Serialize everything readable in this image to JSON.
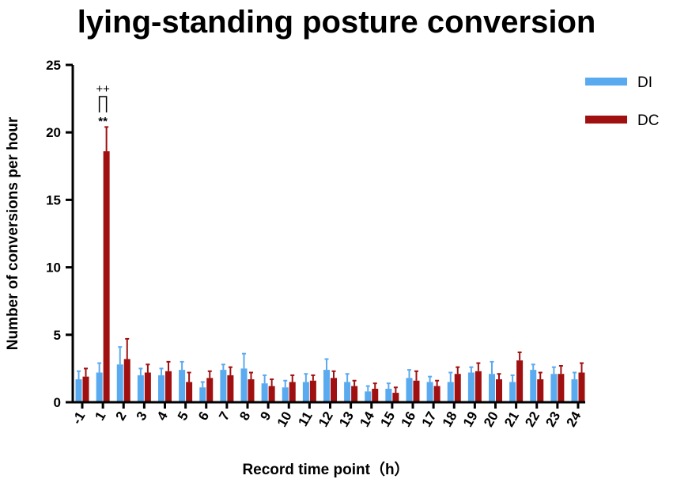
{
  "chart_data": {
    "type": "bar",
    "title": "lying-standing posture conversion",
    "xlabel": "Record time point（h）",
    "ylabel": "Number of conversions per hour",
    "ylim": [
      0,
      25
    ],
    "yticks": [
      "0",
      "5",
      "10",
      "15",
      "20",
      "25"
    ],
    "categories": [
      "-1",
      "1",
      "2",
      "3",
      "4",
      "5",
      "6",
      "7",
      "8",
      "9",
      "10",
      "11",
      "12",
      "13",
      "14",
      "15",
      "16",
      "17",
      "18",
      "19",
      "20",
      "21",
      "22",
      "23",
      "24"
    ],
    "series": [
      {
        "name": "DI",
        "color": "#5aaaf0",
        "values": [
          1.7,
          2.2,
          2.8,
          2.0,
          2.0,
          2.4,
          1.1,
          2.4,
          2.5,
          1.4,
          1.1,
          1.5,
          2.4,
          1.5,
          0.8,
          1.0,
          1.8,
          1.5,
          1.5,
          2.2,
          2.1,
          1.5,
          2.4,
          2.1,
          1.7
        ],
        "errors": [
          0.6,
          0.7,
          1.3,
          0.5,
          0.5,
          0.6,
          0.4,
          0.4,
          1.1,
          0.6,
          0.5,
          0.6,
          0.8,
          0.6,
          0.4,
          0.4,
          0.6,
          0.4,
          0.7,
          0.4,
          0.9,
          0.5,
          0.4,
          0.5,
          0.5
        ]
      },
      {
        "name": "DC",
        "color": "#a01010",
        "values": [
          1.9,
          18.6,
          3.2,
          2.2,
          2.3,
          1.5,
          1.8,
          2.0,
          1.7,
          1.2,
          1.5,
          1.6,
          1.8,
          1.2,
          1.0,
          0.7,
          1.6,
          1.2,
          2.1,
          2.3,
          1.7,
          3.1,
          1.7,
          2.1,
          2.2
        ],
        "errors": [
          0.6,
          1.8,
          1.5,
          0.6,
          0.7,
          0.7,
          0.5,
          0.6,
          0.5,
          0.5,
          0.5,
          0.4,
          0.5,
          0.4,
          0.4,
          0.4,
          0.7,
          0.4,
          0.5,
          0.6,
          0.4,
          0.6,
          0.5,
          0.6,
          0.7
        ]
      }
    ],
    "annotations": [
      {
        "category": "1",
        "text_above": "++",
        "text_below": "**"
      }
    ],
    "legend_position": "top-right",
    "grid": false
  }
}
